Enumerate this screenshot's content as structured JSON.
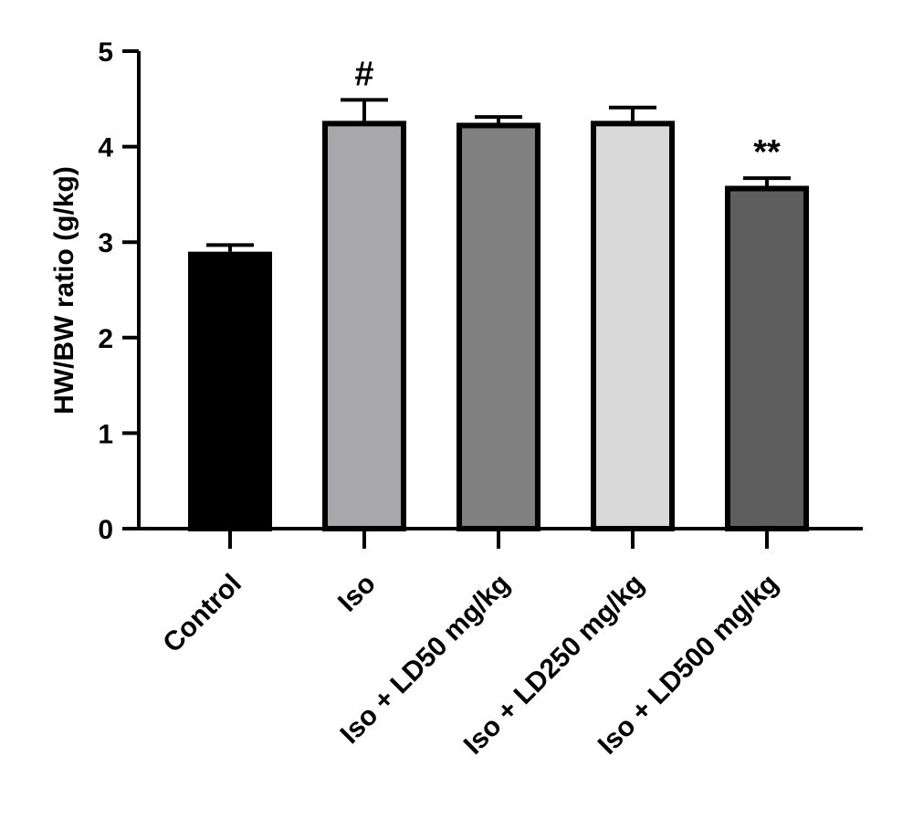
{
  "chart_data": {
    "type": "bar",
    "title": "",
    "xlabel": "",
    "ylabel": "HW/BW ratio (g/kg)",
    "ylim": [
      0,
      5
    ],
    "yticks": [
      0,
      1,
      2,
      3,
      4,
      5
    ],
    "grid": false,
    "categories": [
      "Control",
      "Iso",
      "Iso + LD50 mg/kg",
      "Iso + LD250 mg/kg",
      "Iso + LD500 mg/kg"
    ],
    "values": [
      2.9,
      4.27,
      4.25,
      4.27,
      3.59
    ],
    "error": [
      0.07,
      0.22,
      0.06,
      0.14,
      0.08
    ],
    "annotations": [
      "",
      "#",
      "",
      "",
      "**"
    ],
    "bar_colors": [
      "#000000",
      "#a8a8ab",
      "#808080",
      "#d9d9d9",
      "#5e5e5e"
    ],
    "edge_color": "#000000"
  }
}
